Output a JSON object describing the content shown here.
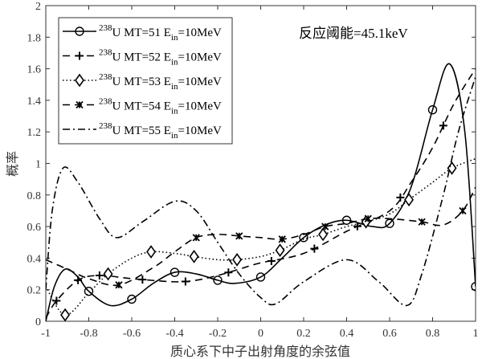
{
  "chart_data": {
    "type": "line",
    "xlabel": "质心系下中子出射角度的余弦值",
    "ylabel": "概率",
    "xlim": [
      -1,
      1
    ],
    "ylim": [
      0,
      2
    ],
    "xticks": [
      "-1",
      "-0.8",
      "-0.6",
      "-0.4",
      "-0.2",
      "0",
      "0.2",
      "0.4",
      "0.6",
      "0.8",
      "1"
    ],
    "yticks": [
      "0",
      "0.2",
      "0.4",
      "0.6",
      "0.8",
      "1",
      "1.2",
      "1.4",
      "1.6",
      "1.8",
      "2"
    ],
    "annotation": "反应阈能=45.1keV",
    "grid": false,
    "legend_position": "top-left",
    "series": [
      {
        "name": "238U MT=51 Ein=10MeV",
        "iso": "238",
        "mt": "U MT=51 E",
        "sub": "in",
        "tail": "=10MeV",
        "line": "solid",
        "marker": "circle",
        "x": [
          -1,
          -0.96,
          -0.91,
          -0.85,
          -0.8,
          -0.7,
          -0.6,
          -0.5,
          -0.4,
          -0.3,
          -0.2,
          -0.12,
          0,
          0.1,
          0.2,
          0.3,
          0.4,
          0.52,
          0.6,
          0.7,
          0.8,
          0.88,
          0.95,
          1
        ],
        "y": [
          0,
          0.22,
          0.33,
          0.28,
          0.19,
          0.1,
          0.14,
          0.24,
          0.31,
          0.3,
          0.26,
          0.24,
          0.28,
          0.4,
          0.53,
          0.61,
          0.64,
          0.6,
          0.62,
          0.85,
          1.34,
          1.63,
          1.2,
          0.22
        ],
        "markers_x": [
          -0.8,
          -0.6,
          -0.4,
          -0.2,
          0,
          0.2,
          0.4,
          0.6,
          0.8,
          1
        ]
      },
      {
        "name": "238U MT=52 Ein=10MeV",
        "iso": "238",
        "mt": "U MT=52 E",
        "sub": "in",
        "tail": "=10MeV",
        "line": "dash",
        "marker": "plus",
        "x": [
          -1,
          -0.95,
          -0.85,
          -0.75,
          -0.6,
          -0.4,
          -0.3,
          -0.2,
          -0.1,
          0,
          0.2,
          0.4,
          0.6,
          0.7,
          0.8,
          0.9,
          1
        ],
        "y": [
          0.02,
          0.13,
          0.26,
          0.29,
          0.27,
          0.25,
          0.26,
          0.29,
          0.33,
          0.37,
          0.43,
          0.57,
          0.7,
          0.88,
          1.1,
          1.38,
          1.6
        ],
        "markers_x": [
          -0.95,
          -0.85,
          -0.75,
          -0.55,
          -0.35,
          -0.15,
          0.05,
          0.25,
          0.45,
          0.65,
          0.85
        ]
      },
      {
        "name": "238U MT=53 Ein=10MeV",
        "iso": "238",
        "mt": "U MT=53 E",
        "sub": "in",
        "tail": "=10MeV",
        "line": "dot",
        "marker": "diamond",
        "x": [
          -1,
          -0.91,
          -0.8,
          -0.71,
          -0.6,
          -0.51,
          -0.4,
          -0.31,
          -0.2,
          -0.11,
          0,
          0.09,
          0.2,
          0.29,
          0.4,
          0.49,
          0.6,
          0.69,
          0.8,
          0.89,
          1
        ],
        "y": [
          0.22,
          0.04,
          0.18,
          0.3,
          0.4,
          0.44,
          0.43,
          0.41,
          0.39,
          0.39,
          0.41,
          0.45,
          0.52,
          0.55,
          0.6,
          0.63,
          0.68,
          0.77,
          0.88,
          0.97,
          1.03
        ],
        "markers_x": [
          -0.91,
          -0.71,
          -0.51,
          -0.31,
          -0.11,
          0.09,
          0.29,
          0.49,
          0.69,
          0.89
        ]
      },
      {
        "name": "238U MT=54 Ein=10MeV",
        "iso": "238",
        "mt": "U MT=54 E",
        "sub": "in",
        "tail": "=10MeV",
        "line": "dash",
        "marker": "x",
        "x": [
          -1,
          -0.9,
          -0.8,
          -0.66,
          -0.5,
          -0.4,
          -0.3,
          -0.2,
          -0.1,
          0,
          0.1,
          0.2,
          0.3,
          0.4,
          0.5,
          0.6,
          0.75,
          0.85,
          0.94,
          1
        ],
        "y": [
          0.39,
          0.33,
          0.27,
          0.23,
          0.34,
          0.44,
          0.53,
          0.55,
          0.54,
          0.53,
          0.52,
          0.55,
          0.6,
          0.62,
          0.65,
          0.65,
          0.63,
          0.61,
          0.7,
          0.85
        ],
        "markers_x": [
          -0.66,
          -0.3,
          -0.1,
          0.1,
          0.3,
          0.5,
          0.75,
          0.94
        ]
      },
      {
        "name": "238U MT=55 Ein=10MeV",
        "iso": "238",
        "mt": "U MT=55 E",
        "sub": "in",
        "tail": "=10MeV",
        "line": "dashdot",
        "marker": "none",
        "x": [
          -1,
          -0.97,
          -0.92,
          -0.85,
          -0.75,
          -0.67,
          -0.55,
          -0.4,
          -0.3,
          -0.2,
          -0.1,
          0,
          0.07,
          0.2,
          0.4,
          0.55,
          0.68,
          0.75,
          0.85,
          0.92,
          1
        ],
        "y": [
          0.2,
          0.7,
          0.97,
          0.88,
          0.65,
          0.53,
          0.63,
          0.76,
          0.7,
          0.5,
          0.3,
          0.15,
          0.11,
          0.25,
          0.39,
          0.25,
          0.1,
          0.3,
          0.8,
          1.2,
          1.55
        ],
        "markers_x": []
      }
    ]
  }
}
